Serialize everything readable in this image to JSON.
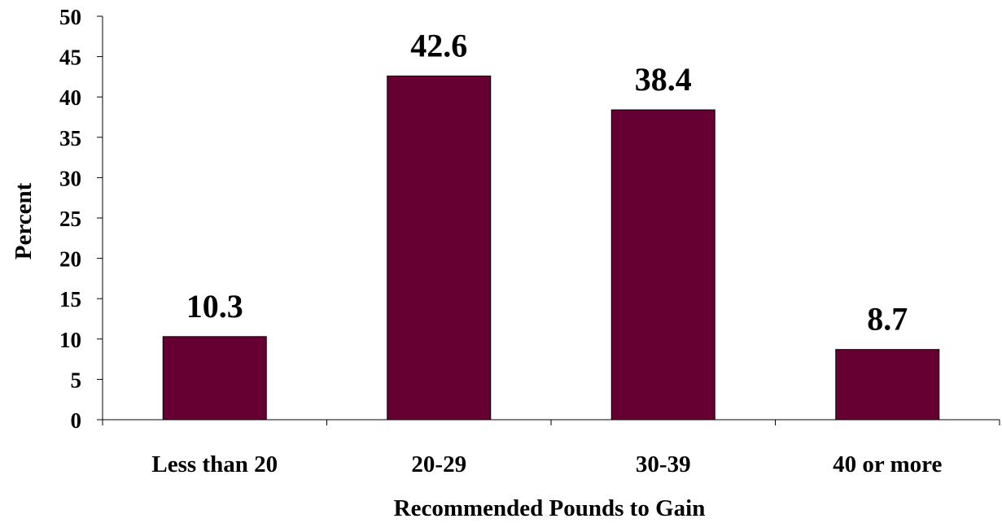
{
  "chart_data": {
    "type": "bar",
    "categories": [
      "Less than 20",
      "20-29",
      "30-39",
      "40 or more"
    ],
    "values": [
      10.3,
      42.6,
      38.4,
      8.7
    ],
    "data_labels": [
      "10.3",
      "42.6",
      "38.4",
      "8.7"
    ],
    "title": "",
    "xlabel": "Recommended Pounds to Gain",
    "ylabel": "Percent",
    "ylim": [
      0,
      50
    ],
    "yticks": [
      0,
      5,
      10,
      15,
      20,
      25,
      30,
      35,
      40,
      45,
      50
    ],
    "grid": false,
    "legend": "none",
    "bar_color": "#660033"
  }
}
